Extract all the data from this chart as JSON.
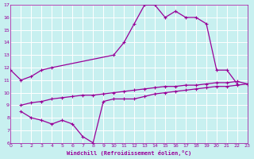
{
  "xlabel": "Windchill (Refroidissement éolien,°C)",
  "background_color": "#c8f0f0",
  "line_color": "#990099",
  "grid_color": "#ffffff",
  "xlim": [
    0,
    23
  ],
  "ylim": [
    6,
    17
  ],
  "xticks": [
    0,
    1,
    2,
    3,
    4,
    5,
    6,
    7,
    8,
    9,
    10,
    11,
    12,
    13,
    14,
    15,
    16,
    17,
    18,
    19,
    20,
    21,
    22,
    23
  ],
  "yticks": [
    6,
    7,
    8,
    9,
    10,
    11,
    12,
    13,
    14,
    15,
    16,
    17
  ],
  "line1_x": [
    0,
    1,
    2,
    3,
    4,
    10,
    11,
    12,
    13,
    14,
    15,
    16,
    17,
    18,
    19,
    20,
    21,
    22
  ],
  "line1_y": [
    11.8,
    11.0,
    11.3,
    11.8,
    12.0,
    13.0,
    14.0,
    15.5,
    17.0,
    17.0,
    16.0,
    16.5,
    16.0,
    16.0,
    15.5,
    11.8,
    11.8,
    10.7
  ],
  "line2_x": [
    1,
    2,
    3,
    4,
    5,
    6,
    7,
    8,
    9,
    10,
    11,
    12,
    13,
    14,
    15,
    16,
    17,
    18,
    19,
    20,
    21,
    22,
    23
  ],
  "line2_y": [
    9.0,
    9.2,
    9.3,
    9.5,
    9.6,
    9.7,
    9.8,
    9.8,
    9.9,
    10.0,
    10.1,
    10.2,
    10.3,
    10.4,
    10.5,
    10.5,
    10.6,
    10.6,
    10.7,
    10.8,
    10.8,
    10.9,
    10.7
  ],
  "line3_x": [
    1,
    2,
    3,
    4,
    5,
    6,
    7,
    8,
    9,
    10,
    11,
    12,
    13,
    14,
    15,
    16,
    17,
    18,
    19,
    20,
    21,
    22,
    23
  ],
  "line3_y": [
    8.5,
    8.0,
    7.8,
    7.5,
    7.8,
    7.5,
    6.5,
    6.0,
    9.3,
    9.5,
    9.5,
    9.5,
    9.7,
    9.9,
    10.0,
    10.1,
    10.2,
    10.3,
    10.4,
    10.5,
    10.5,
    10.6,
    10.7
  ]
}
